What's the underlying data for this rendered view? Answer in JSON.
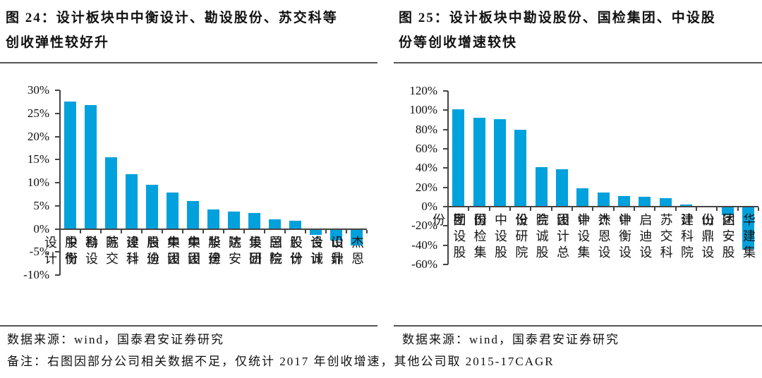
{
  "page": {
    "background": "#ffffff"
  },
  "note": "备注：右图因部分公司相关数据不足，仅统计 2017 年创收增速，其他公司取 2015-17CAGR",
  "charts": [
    {
      "figure_label": "图 24：",
      "title_line1": "设计板块中中衡设计、勘设股份、苏交科等",
      "title_line2": "创收弹性较好升",
      "source": "数据来源：wind，国泰君安证券研究"
    },
    {
      "figure_label": "图 25：",
      "title_line1": "设计板块中勘设股份、国检集团、中设股",
      "title_line2": "份等创收增速较快",
      "source": "数据来源：wind，国泰君安证券研究"
    }
  ],
  "chart_data": [
    {
      "type": "bar",
      "title": "图 24：设计板块中中衡设计、勘设股份、苏交科等创收弹性较好升",
      "categories": [
        "中衡设计",
        "勘设股份",
        "苏交科",
        "建科院",
        "启迪设计",
        "中设股份",
        "中设集团",
        "华建集团",
        "达安股份",
        "设研院",
        "国检集团",
        "设计总院",
        "合诚股份",
        "山鼎设计",
        "杰恩设计"
      ],
      "values": [
        27.5,
        26.8,
        15.5,
        11.9,
        9.6,
        7.8,
        6.0,
        4.2,
        3.8,
        3.5,
        2.1,
        1.8,
        -1.2,
        -2.3,
        -3.5
      ],
      "xlabel": "",
      "ylabel": "",
      "ylim": [
        -10,
        30
      ],
      "ytick_step": 5,
      "ytick_format": "percent",
      "grid": false,
      "legend": "none",
      "bar_color": "#00A1DC",
      "axis_color": "#444444"
    },
    {
      "type": "bar",
      "title": "图 25：设计板块中勘设股份、国检集团、中设股份等创收增速较快",
      "categories": [
        "勘设股份",
        "国检集团",
        "中设股份",
        "设研院",
        "合诚股份",
        "设计总院",
        "中设集团",
        "杰恩设计",
        "中衡设计",
        "启迪设计",
        "苏交科",
        "建科院",
        "山鼎设计",
        "达安股份",
        "华建集团"
      ],
      "values": [
        101,
        92,
        91,
        80,
        41,
        39,
        19,
        15,
        11,
        10,
        9,
        2,
        1,
        -8,
        -44
      ],
      "xlabel": "",
      "ylabel": "",
      "ylim": [
        -60,
        120
      ],
      "ytick_step": 20,
      "ytick_format": "percent",
      "grid": false,
      "legend": "none",
      "bar_color": "#00A1DC",
      "axis_color": "#444444"
    }
  ]
}
